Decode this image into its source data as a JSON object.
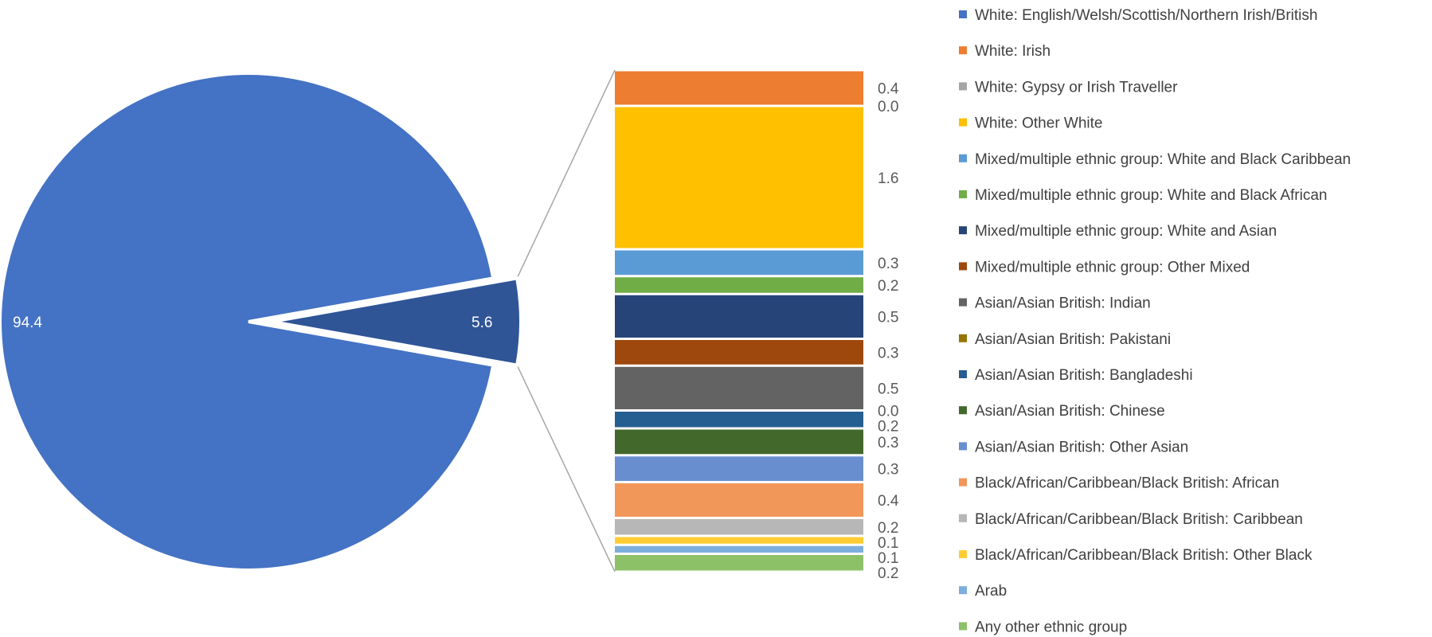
{
  "chart_data": {
    "type": "bar-of-pie",
    "pie": {
      "slices": [
        {
          "label": "94.4",
          "value": 94.4,
          "color": "#4472C4"
        },
        {
          "label": "5.6",
          "value": 5.6,
          "color": "#2F5597"
        }
      ]
    },
    "series": [
      {
        "name": "White: English/Welsh/Scottish/Northern Irish/British",
        "value": 94.4,
        "value_label": "94.4",
        "color": "#4472C4"
      },
      {
        "name": "White: Irish",
        "value": 0.4,
        "value_label": "0.4",
        "color": "#ED7D31"
      },
      {
        "name": "White: Gypsy or Irish Traveller",
        "value": 0.0,
        "value_label": "0.0",
        "color": "#A5A5A5"
      },
      {
        "name": "White: Other White",
        "value": 1.6,
        "value_label": "1.6",
        "color": "#FFC000"
      },
      {
        "name": "Mixed/multiple ethnic group: White and Black Caribbean",
        "value": 0.3,
        "value_label": "0.3",
        "color": "#5B9BD5"
      },
      {
        "name": "Mixed/multiple ethnic group: White and Black African",
        "value": 0.2,
        "value_label": "0.2",
        "color": "#70AD47"
      },
      {
        "name": "Mixed/multiple ethnic group: White and Asian",
        "value": 0.5,
        "value_label": "0.5",
        "color": "#264478"
      },
      {
        "name": "Mixed/multiple ethnic group: Other Mixed",
        "value": 0.3,
        "value_label": "0.3",
        "color": "#9E480E"
      },
      {
        "name": "Asian/Asian British: Indian",
        "value": 0.5,
        "value_label": "0.5",
        "color": "#636363"
      },
      {
        "name": "Asian/Asian British: Pakistani",
        "value": 0.0,
        "value_label": "0.0",
        "color": "#997300"
      },
      {
        "name": "Asian/Asian British: Bangladeshi",
        "value": 0.2,
        "value_label": "0.2",
        "color": "#255E91"
      },
      {
        "name": "Asian/Asian British: Chinese",
        "value": 0.3,
        "value_label": "0.3",
        "color": "#43682B"
      },
      {
        "name": "Asian/Asian British: Other Asian",
        "value": 0.3,
        "value_label": "0.3",
        "color": "#698ED0"
      },
      {
        "name": "Black/African/Caribbean/Black British: African",
        "value": 0.4,
        "value_label": "0.4",
        "color": "#F1975A"
      },
      {
        "name": "Black/African/Caribbean/Black British: Caribbean",
        "value": 0.2,
        "value_label": "0.2",
        "color": "#B7B7B7"
      },
      {
        "name": "Black/African/Caribbean/Black British: Other Black",
        "value": 0.1,
        "value_label": "0.1",
        "color": "#FFCD33"
      },
      {
        "name": "Arab",
        "value": 0.1,
        "value_label": "0.1",
        "color": "#7CAFDD"
      },
      {
        "name": "Any other ethnic group",
        "value": 0.2,
        "value_label": "0.2",
        "color": "#8CC168"
      }
    ],
    "legend_placement": "right",
    "grid": false
  }
}
